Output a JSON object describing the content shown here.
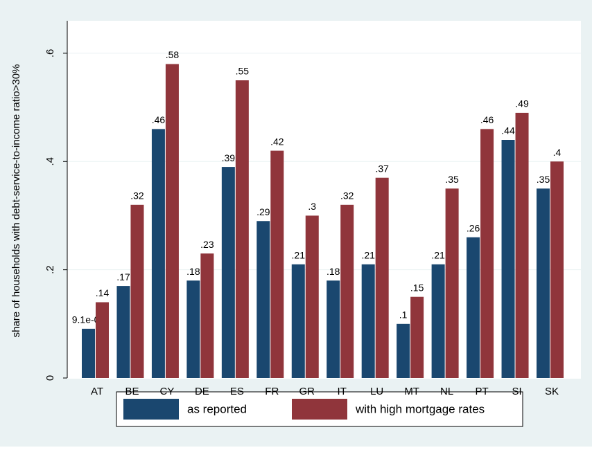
{
  "chart_data": {
    "type": "bar",
    "y_label": "share of households with debt-service-to-income ratio>30%",
    "categories": [
      "AT",
      "BE",
      "CY",
      "DE",
      "ES",
      "FR",
      "GR",
      "IT",
      "LU",
      "MT",
      "NL",
      "PT",
      "SI",
      "SK"
    ],
    "series": [
      {
        "name": "as reported",
        "color": "#1a476f",
        "values": [
          0.091,
          0.17,
          0.46,
          0.18,
          0.39,
          0.29,
          0.21,
          0.18,
          0.21,
          0.1,
          0.21,
          0.26,
          0.44,
          0.35
        ],
        "value_labels": [
          "9.1e-02",
          ".17",
          ".46",
          ".18",
          ".39",
          ".29",
          ".21",
          ".18",
          ".21",
          ".1",
          ".21",
          ".26",
          ".44",
          ".35"
        ]
      },
      {
        "name": "with high mortgage rates",
        "color": "#90353b",
        "values": [
          0.14,
          0.32,
          0.58,
          0.23,
          0.55,
          0.42,
          0.3,
          0.32,
          0.37,
          0.15,
          0.35,
          0.46,
          0.49,
          0.4
        ],
        "value_labels": [
          ".14",
          ".32",
          ".58",
          ".23",
          ".55",
          ".42",
          ".3",
          ".32",
          ".37",
          ".15",
          ".35",
          ".46",
          ".49",
          ".4"
        ]
      }
    ],
    "ylim": [
      0,
      0.66
    ],
    "yticks": [
      0,
      {
        "value": 0.2,
        "label": ".2"
      },
      {
        "value": 0.4,
        "label": ".4"
      },
      {
        "value": 0.6,
        "label": ".6"
      }
    ],
    "grid": true
  }
}
